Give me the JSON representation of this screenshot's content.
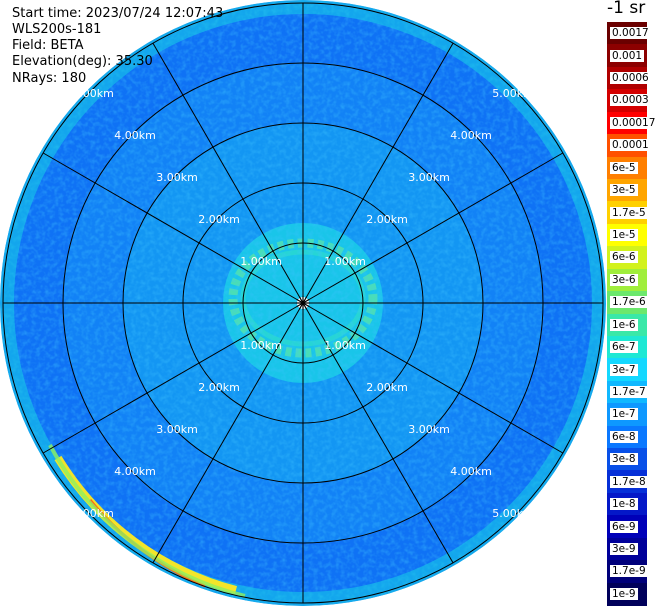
{
  "header": {
    "start_time": "Start time: 2023/07/24 12:07:43",
    "instrument": "WLS200s-181",
    "field": "Field: BETA",
    "elevation": "Elevation(deg): 35.30",
    "nrays": "NRays: 180"
  },
  "plot": {
    "type": "ppi-polar",
    "range_rings_km": [
      1,
      2,
      3,
      4,
      5
    ],
    "ring_labels": [
      "1.00km",
      "2.00km",
      "3.00km",
      "4.00km",
      "5.00km"
    ],
    "radial_spokes_deg": [
      0,
      30,
      60,
      90,
      120,
      150,
      180,
      210,
      240,
      270,
      300,
      330
    ]
  },
  "colorbar": {
    "unit": "-1 sr",
    "ticks": [
      "0.0017",
      "0.001",
      "0.0006",
      "0.0003",
      "0.00017",
      "0.0001",
      "6e-5",
      "3e-5",
      "1.7e-5",
      "1e-5",
      "6e-6",
      "3e-6",
      "1.7e-6",
      "1e-6",
      "6e-7",
      "3e-7",
      "1.7e-7",
      "1e-7",
      "6e-8",
      "3e-8",
      "1.7e-8",
      "1e-8",
      "6e-9",
      "3e-9",
      "1.7e-9",
      "1e-9"
    ],
    "colors": [
      "#6a0000",
      "#8c0000",
      "#b00000",
      "#d40000",
      "#ff0000",
      "#ff5000",
      "#ff7f00",
      "#ffa500",
      "#ffd000",
      "#ffff00",
      "#d2f21c",
      "#a0ee3c",
      "#6ce86c",
      "#3ae8a8",
      "#1ee8d4",
      "#14d8ff",
      "#10b8ff",
      "#0e98ff",
      "#0a78ff",
      "#0850e8",
      "#0630d8",
      "#0418c8",
      "#0000b8",
      "#00009a",
      "#00007a",
      "#00005a"
    ]
  }
}
